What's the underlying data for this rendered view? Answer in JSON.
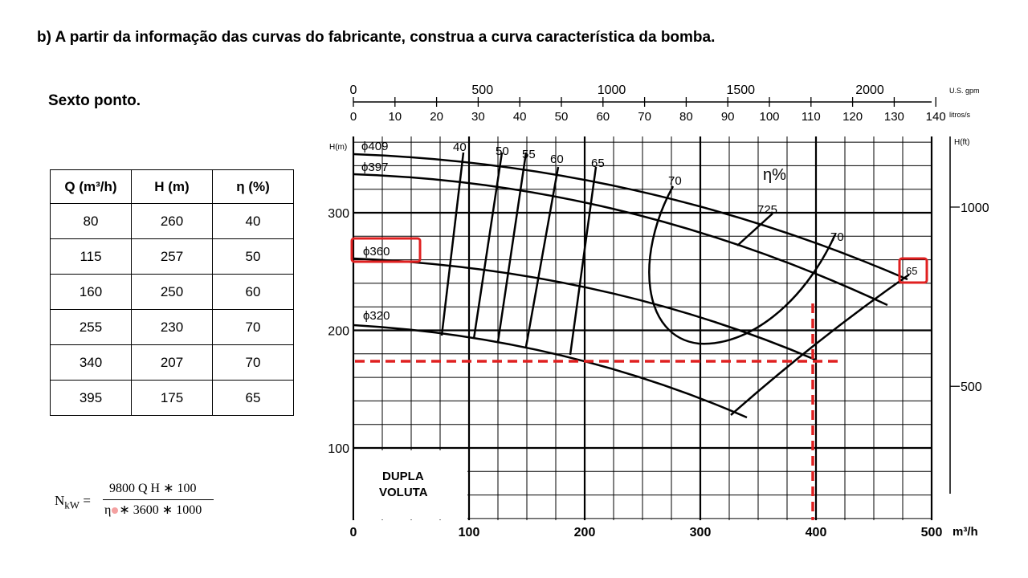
{
  "header": {
    "title": "b) A partir da informação das curvas do fabricante, construa a curva característica da bomba."
  },
  "subtitle": "Sexto ponto.",
  "table": {
    "columns": [
      "Q (m³/h)",
      "H (m)",
      "η (%)"
    ],
    "rows": [
      [
        "80",
        "260",
        "40"
      ],
      [
        "115",
        "257",
        "50"
      ],
      [
        "160",
        "250",
        "60"
      ],
      [
        "255",
        "230",
        "70"
      ],
      [
        "340",
        "207",
        "70"
      ],
      [
        "395",
        "175",
        "65"
      ]
    ]
  },
  "formula": {
    "lhs": "N",
    "lhs_sub": "kW",
    "equals": "=",
    "numerator": "9800 Q H ∗ 100",
    "denominator_symbol": "η",
    "denominator": "∗ 3600  ∗ 1000"
  },
  "figure": {
    "x_axis": {
      "ticks": [
        0,
        100,
        200,
        300,
        400,
        500
      ],
      "unit": "m³/h"
    },
    "y_axis": {
      "ticks": [
        100,
        200,
        300
      ],
      "unit": "H(m)"
    },
    "gpm_axis": {
      "ticks": [
        0,
        500,
        1000,
        1500,
        2000
      ],
      "unit": "U.S. gpm"
    },
    "ls_axis": {
      "ticks": [
        0,
        10,
        20,
        30,
        40,
        50,
        60,
        70,
        80,
        90,
        100,
        110,
        120,
        130,
        140
      ],
      "unit": "litros/s"
    },
    "ft_axis": {
      "ticks": [
        500,
        1000
      ],
      "unit": "H(ft)"
    },
    "box_label": [
      "DUPLA",
      "VOLUTA"
    ],
    "diameters": [
      "ϕ409",
      "ϕ397",
      "ϕ360",
      "ϕ320"
    ],
    "efficiency_labels": [
      "40",
      "50",
      "55",
      "60",
      "65",
      "70",
      "725",
      "η%",
      "70",
      "65"
    ]
  }
}
